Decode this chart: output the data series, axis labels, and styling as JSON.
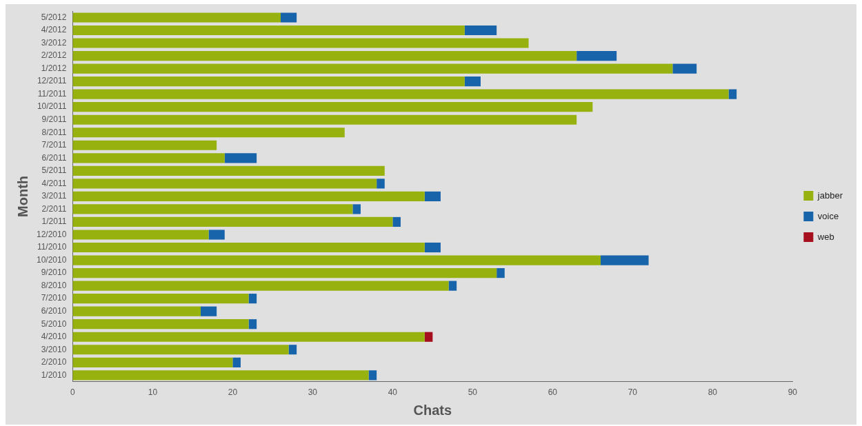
{
  "chart_data": {
    "type": "bar",
    "orientation": "horizontal",
    "stacked": true,
    "xlabel": "Chats",
    "ylabel": "Month",
    "categories": [
      "5/2012",
      "4/2012",
      "3/2012",
      "2/2012",
      "1/2012",
      "12/2011",
      "11/2011",
      "10/2011",
      "9/2011",
      "8/2011",
      "7/2011",
      "6/2011",
      "5/2011",
      "4/2011",
      "3/2011",
      "2/2011",
      "1/2011",
      "12/2010",
      "11/2010",
      "10/2010",
      "9/2010",
      "8/2010",
      "7/2010",
      "6/2010",
      "5/2010",
      "4/2010",
      "3/2010",
      "2/2010",
      "1/2010"
    ],
    "series": [
      {
        "name": "jabber",
        "color": "#97b20e",
        "values": [
          26,
          49,
          57,
          63,
          75,
          49,
          82,
          65,
          63,
          34,
          18,
          19,
          39,
          38,
          44,
          35,
          40,
          17,
          44,
          66,
          53,
          47,
          22,
          16,
          22,
          44,
          27,
          20,
          37
        ]
      },
      {
        "name": "voice",
        "color": "#1764ab",
        "values": [
          2,
          4,
          null,
          5,
          3,
          2,
          1,
          null,
          null,
          null,
          null,
          4,
          null,
          1,
          2,
          1,
          1,
          2,
          2,
          6,
          1,
          1,
          1,
          2,
          1,
          null,
          1,
          1,
          1
        ]
      },
      {
        "name": "web",
        "color": "#a50f1e",
        "values": [
          null,
          null,
          null,
          null,
          null,
          null,
          null,
          null,
          null,
          null,
          null,
          null,
          null,
          null,
          null,
          null,
          null,
          null,
          null,
          null,
          null,
          null,
          null,
          null,
          null,
          1,
          null,
          null,
          null
        ]
      }
    ],
    "xlim": [
      0,
      90
    ],
    "xticks": [
      0,
      10,
      20,
      30,
      40,
      50,
      60,
      70,
      80,
      90
    ],
    "grid": false,
    "legend": "right"
  }
}
